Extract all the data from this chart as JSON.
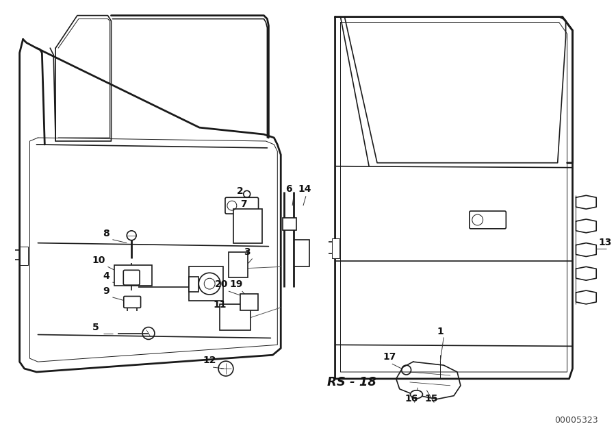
{
  "bg_color": "#ffffff",
  "line_color": "#1a1a1a",
  "label_color": "#111111",
  "part_number_label": "00005323",
  "rs_label": "RS - 18",
  "figsize": [
    9.0,
    6.35
  ],
  "dpi": 100
}
